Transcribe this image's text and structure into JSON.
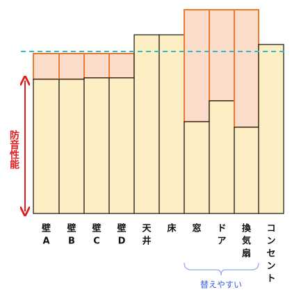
{
  "axis_label": "防音性能",
  "columns": [
    [
      "壁",
      "A"
    ],
    [
      "壁",
      "B"
    ],
    [
      "壁",
      "C"
    ],
    [
      "壁",
      "D"
    ],
    [
      "天",
      "井"
    ],
    [
      "床"
    ],
    [
      "窓"
    ],
    [
      "ド",
      "ア"
    ],
    [
      "換",
      "気",
      "扇"
    ],
    [
      "コ",
      "ン",
      "セ",
      "ン",
      "ト"
    ]
  ],
  "bracket_label": "替えやすい"
}
